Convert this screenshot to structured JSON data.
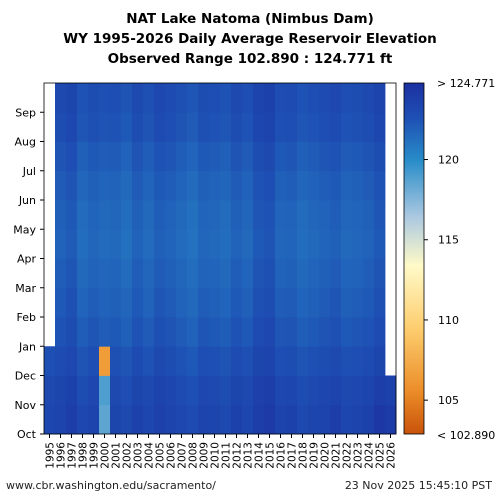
{
  "chart_data": {
    "type": "heatmap",
    "title": "NAT Lake Natoma (Nimbus Dam)",
    "subtitle": "WY 1995-2026 Daily Average Reservoir Elevation",
    "subtitle2": "Observed Range 102.890 : 124.771 ft",
    "x_categories": [
      "1995",
      "1996",
      "1997",
      "1998",
      "1999",
      "2000",
      "2001",
      "2002",
      "2003",
      "2004",
      "2005",
      "2006",
      "2007",
      "2008",
      "2009",
      "2010",
      "2011",
      "2012",
      "2013",
      "2014",
      "2015",
      "2016",
      "2017",
      "2018",
      "2019",
      "2020",
      "2021",
      "2022",
      "2023",
      "2024",
      "2025",
      "2026"
    ],
    "y_categories": [
      "Oct",
      "Nov",
      "Dec",
      "Jan",
      "Feb",
      "Mar",
      "Apr",
      "May",
      "Jun",
      "Jul",
      "Aug",
      "Sep"
    ],
    "colorbar": {
      "ticks": [
        105,
        110,
        115,
        120
      ],
      "min_label": "< 102.890",
      "max_label": "> 124.771",
      "range": [
        102.89,
        124.771
      ]
    },
    "values_note": "",
    "monthly_elevation_by_year": [
      [
        123.2,
        123.5,
        123.8,
        123.1,
        123.4,
        118.5,
        123.3,
        123.0,
        123.6,
        123.2,
        123.7,
        123.4,
        123.1,
        122.9,
        123.5,
        123.3,
        123.0,
        123.6,
        123.2,
        123.9,
        124.1,
        123.4,
        123.6,
        123.0,
        123.3,
        123.5,
        123.8,
        123.2,
        123.4,
        123.6,
        124.2,
        124.0
      ],
      [
        123.0,
        123.3,
        123.6,
        122.8,
        123.1,
        118.9,
        123.0,
        122.7,
        123.3,
        123.0,
        123.4,
        123.2,
        122.9,
        122.6,
        123.1,
        123.0,
        122.8,
        123.3,
        123.0,
        123.7,
        123.9,
        123.1,
        123.2,
        122.8,
        123.0,
        123.2,
        123.5,
        123.0,
        123.1,
        123.3,
        123.8,
        123.6
      ],
      [
        122.6,
        122.9,
        123.1,
        122.4,
        122.7,
        106.5,
        122.6,
        122.3,
        122.9,
        122.5,
        123.0,
        122.8,
        122.5,
        122.2,
        122.7,
        122.6,
        122.4,
        122.9,
        122.6,
        123.3,
        123.5,
        122.7,
        122.8,
        122.4,
        122.6,
        122.8,
        123.0,
        122.6,
        122.7,
        122.9,
        123.3,
        null
      ],
      [
        null,
        122.5,
        122.8,
        122.0,
        122.3,
        122.0,
        122.2,
        121.9,
        122.5,
        122.1,
        122.6,
        122.4,
        122.1,
        121.8,
        122.3,
        122.2,
        122.0,
        122.5,
        122.2,
        122.9,
        123.1,
        122.3,
        122.4,
        122.0,
        122.2,
        122.4,
        122.6,
        122.2,
        122.3,
        122.5,
        122.9,
        null
      ],
      [
        null,
        122.2,
        122.6,
        121.7,
        122.0,
        121.8,
        121.9,
        121.6,
        122.2,
        121.8,
        122.3,
        122.1,
        121.8,
        121.5,
        122.0,
        121.9,
        121.7,
        122.2,
        121.9,
        122.6,
        122.8,
        122.0,
        122.1,
        121.7,
        121.9,
        122.1,
        122.3,
        121.9,
        122.0,
        122.2,
        122.6,
        null
      ],
      [
        null,
        122.0,
        122.3,
        121.5,
        121.8,
        121.6,
        121.7,
        121.4,
        122.0,
        121.6,
        122.1,
        121.9,
        121.6,
        121.3,
        121.8,
        121.7,
        121.5,
        122.0,
        121.7,
        122.4,
        122.6,
        121.8,
        121.9,
        121.5,
        121.7,
        121.9,
        122.1,
        121.7,
        121.8,
        122.0,
        122.4,
        null
      ],
      [
        null,
        121.8,
        122.1,
        121.3,
        121.6,
        121.4,
        121.5,
        121.2,
        121.8,
        121.4,
        121.9,
        121.7,
        121.4,
        121.1,
        121.6,
        121.5,
        121.3,
        121.8,
        121.5,
        122.2,
        122.4,
        121.6,
        121.7,
        121.3,
        121.5,
        121.7,
        121.9,
        121.5,
        121.6,
        121.8,
        122.2,
        null
      ],
      [
        null,
        121.9,
        122.2,
        121.4,
        121.7,
        121.5,
        121.6,
        121.3,
        121.9,
        121.5,
        122.0,
        121.8,
        121.5,
        121.2,
        121.7,
        121.6,
        121.4,
        121.9,
        121.6,
        122.3,
        122.5,
        121.7,
        121.8,
        121.4,
        121.6,
        121.8,
        122.0,
        121.6,
        121.7,
        121.9,
        122.3,
        null
      ],
      [
        null,
        122.1,
        122.4,
        121.6,
        121.9,
        121.7,
        121.8,
        121.5,
        122.1,
        121.7,
        122.2,
        122.0,
        121.7,
        121.4,
        121.9,
        121.8,
        121.6,
        122.1,
        121.8,
        122.5,
        122.7,
        121.9,
        122.0,
        121.6,
        121.8,
        122.0,
        122.2,
        121.8,
        121.9,
        122.1,
        122.5,
        null
      ],
      [
        null,
        122.4,
        122.7,
        121.9,
        122.2,
        122.0,
        122.1,
        121.8,
        122.4,
        122.0,
        122.5,
        122.3,
        122.0,
        121.7,
        122.2,
        122.1,
        121.9,
        122.4,
        122.1,
        122.8,
        123.0,
        122.2,
        122.3,
        121.9,
        122.1,
        122.3,
        122.5,
        122.1,
        122.2,
        122.4,
        122.8,
        null
      ],
      [
        null,
        122.8,
        123.1,
        122.3,
        122.6,
        122.4,
        122.5,
        122.2,
        122.8,
        122.4,
        122.9,
        122.7,
        122.4,
        122.1,
        122.6,
        122.5,
        122.3,
        122.8,
        122.5,
        123.2,
        123.4,
        122.6,
        122.7,
        122.3,
        122.5,
        122.7,
        122.9,
        122.5,
        122.6,
        122.8,
        123.2,
        null
      ],
      [
        null,
        123.0,
        123.3,
        122.5,
        122.8,
        122.6,
        122.7,
        122.4,
        123.0,
        122.6,
        123.1,
        122.9,
        122.6,
        122.3,
        122.8,
        122.7,
        122.5,
        123.0,
        122.7,
        123.4,
        123.6,
        122.8,
        122.9,
        122.5,
        122.7,
        122.9,
        123.1,
        122.7,
        122.8,
        123.0,
        123.4,
        null
      ]
    ]
  },
  "footer": {
    "left": "www.cbr.washington.edu/sacramento/",
    "right": "23 Nov 2025 15:45:10 PST"
  },
  "colors": {
    "low": "#c8520a",
    "mid": "#ffffbf",
    "high": "#2034a8",
    "background": "#ffffff"
  }
}
